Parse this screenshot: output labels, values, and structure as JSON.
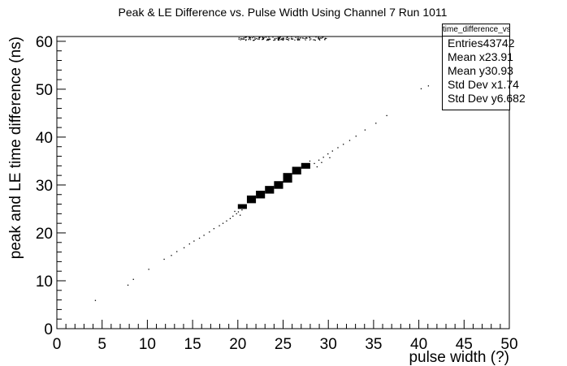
{
  "chart_data": {
    "type": "scatter",
    "title": "Peak & LE Difference vs. Pulse Width Using Channel 7 Run 1011",
    "xlabel": "pulse width (?)",
    "ylabel": "peak and LE time difference (ns)",
    "xlim": [
      0,
      50
    ],
    "ylim": [
      0,
      61
    ],
    "x_ticks": [
      "0",
      "5",
      "10",
      "15",
      "20",
      "25",
      "30",
      "35",
      "40",
      "45",
      "50"
    ],
    "y_ticks": [
      "0",
      "10",
      "20",
      "30",
      "40",
      "50",
      "60"
    ],
    "dense_bins": [
      {
        "x": 20.5,
        "y": 25.5,
        "w": 1.0,
        "h": 1.0
      },
      {
        "x": 21.5,
        "y": 27.0,
        "w": 1.0,
        "h": 1.6
      },
      {
        "x": 22.5,
        "y": 28.0,
        "w": 1.0,
        "h": 1.6
      },
      {
        "x": 23.5,
        "y": 29.0,
        "w": 1.0,
        "h": 1.6
      },
      {
        "x": 24.5,
        "y": 30.0,
        "w": 1.0,
        "h": 1.6
      },
      {
        "x": 25.5,
        "y": 31.5,
        "w": 1.0,
        "h": 2.0
      },
      {
        "x": 26.5,
        "y": 33.0,
        "w": 1.0,
        "h": 1.6
      },
      {
        "x": 27.5,
        "y": 34.0,
        "w": 1.0,
        "h": 1.2
      }
    ],
    "scatter_points": [
      {
        "x": 4.2,
        "y": 6.0
      },
      {
        "x": 7.8,
        "y": 9.2
      },
      {
        "x": 8.4,
        "y": 10.4
      },
      {
        "x": 10.1,
        "y": 12.5
      },
      {
        "x": 11.8,
        "y": 14.6
      },
      {
        "x": 12.6,
        "y": 15.4
      },
      {
        "x": 13.2,
        "y": 16.2
      },
      {
        "x": 14.0,
        "y": 17.0
      },
      {
        "x": 14.6,
        "y": 17.8
      },
      {
        "x": 15.1,
        "y": 18.4
      },
      {
        "x": 15.7,
        "y": 19.0
      },
      {
        "x": 16.2,
        "y": 19.6
      },
      {
        "x": 16.8,
        "y": 20.3
      },
      {
        "x": 17.3,
        "y": 21.0
      },
      {
        "x": 17.9,
        "y": 21.6
      },
      {
        "x": 18.3,
        "y": 22.1
      },
      {
        "x": 18.7,
        "y": 22.6
      },
      {
        "x": 19.1,
        "y": 23.1
      },
      {
        "x": 19.4,
        "y": 23.6
      },
      {
        "x": 19.8,
        "y": 24.1
      },
      {
        "x": 20.0,
        "y": 24.5
      },
      {
        "x": 20.2,
        "y": 23.8
      },
      {
        "x": 19.6,
        "y": 24.6
      },
      {
        "x": 20.4,
        "y": 24.9
      },
      {
        "x": 28.4,
        "y": 34.6
      },
      {
        "x": 28.9,
        "y": 35.3
      },
      {
        "x": 29.4,
        "y": 35.9
      },
      {
        "x": 29.9,
        "y": 36.6
      },
      {
        "x": 30.4,
        "y": 37.2
      },
      {
        "x": 31.0,
        "y": 37.9
      },
      {
        "x": 31.6,
        "y": 38.6
      },
      {
        "x": 32.3,
        "y": 39.4
      },
      {
        "x": 33.0,
        "y": 40.3
      },
      {
        "x": 34.0,
        "y": 41.6
      },
      {
        "x": 35.2,
        "y": 43.0
      },
      {
        "x": 36.4,
        "y": 44.6
      },
      {
        "x": 40.2,
        "y": 50.2
      },
      {
        "x": 41.0,
        "y": 50.8
      },
      {
        "x": 28.7,
        "y": 33.9
      },
      {
        "x": 29.2,
        "y": 34.8
      },
      {
        "x": 30.1,
        "y": 35.8
      },
      {
        "x": 27.9,
        "y": 35.1
      }
    ],
    "top_band": {
      "x_min": 20.0,
      "x_max": 30.0,
      "y_min": 60.3,
      "y_max": 61.0
    },
    "stats": {
      "title": "time_difference_vs_pWidth",
      "rows": [
        {
          "label": "Entries",
          "value": "43742"
        },
        {
          "label": "Mean x",
          "value": "23.91"
        },
        {
          "label": "Mean y",
          "value": "30.93"
        },
        {
          "label": "Std Dev x",
          "value": "1.74"
        },
        {
          "label": "Std Dev y",
          "value": "6.682"
        }
      ]
    }
  }
}
